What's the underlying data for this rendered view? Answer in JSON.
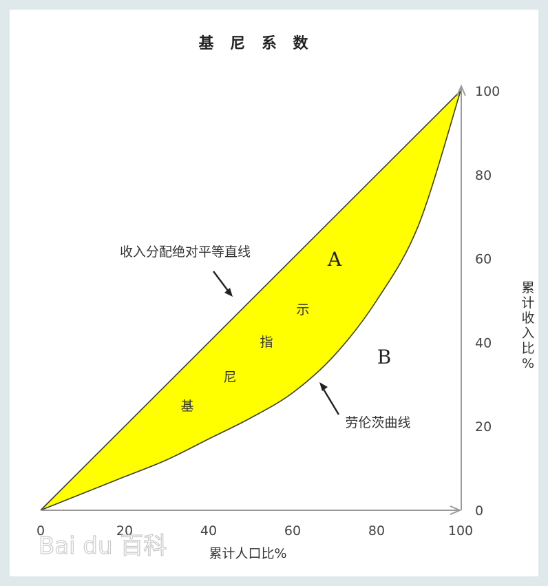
{
  "chart_data": {
    "type": "area",
    "title": "基 尼 系 数",
    "xlabel": "累计人口比%",
    "ylabel": "累计收入比%",
    "xlim": [
      0,
      100
    ],
    "ylim": [
      0,
      100
    ],
    "x_ticks": [
      "0",
      "20",
      "40",
      "60",
      "80",
      "100"
    ],
    "y_ticks": [
      "0",
      "20",
      "40",
      "60",
      "80",
      "100"
    ],
    "series": [
      {
        "name": "收入分配绝对平等直线",
        "x": [
          0,
          100
        ],
        "y": [
          0,
          100
        ]
      },
      {
        "name": "劳伦茨曲线",
        "x": [
          0,
          10,
          20,
          30,
          40,
          50,
          60,
          70,
          80,
          90,
          100
        ],
        "y": [
          0,
          4,
          8,
          12,
          17,
          22,
          28,
          37,
          50,
          68,
          100
        ]
      }
    ],
    "annotations": {
      "region_a": "A",
      "region_b": "B",
      "gini_chars": [
        "基",
        "尼",
        "指",
        "示"
      ]
    },
    "fill_color": "#ffff00",
    "grid": false,
    "watermark": "Bai du 百科"
  }
}
